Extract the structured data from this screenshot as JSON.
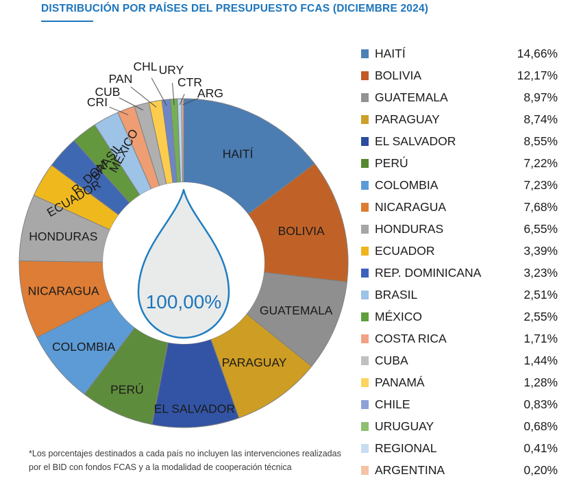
{
  "page": {
    "title": "DISTRIBUCIÓN POR PAÍSES DEL PRESUPUESTO FCAS (DICIEMBRE 2024)"
  },
  "chart_data": {
    "type": "pie",
    "subtype": "donut",
    "title": "DISTRIBUCIÓN POR PAÍSES DEL PRESUPUESTO FCAS (DICIEMBRE 2024)",
    "center_label": "100,00%",
    "legend_position": "right",
    "start_angle_deg": 0,
    "direction": "clockwise",
    "series": [
      {
        "name": "HAITÍ",
        "pie_label": "HAITÍ",
        "value": 14.66,
        "display": "14,66%",
        "slice_color": "#4B7DB3",
        "legend_color": "#4E80B4"
      },
      {
        "name": "BOLIVIA",
        "pie_label": "BOLIVIA",
        "value": 12.17,
        "display": "12,17%",
        "slice_color": "#C06227",
        "legend_color": "#C15A27"
      },
      {
        "name": "GUATEMALA",
        "pie_label": "GUATEMALA",
        "value": 8.97,
        "display": "8,97%",
        "slice_color": "#8F8F8F",
        "legend_color": "#929292"
      },
      {
        "name": "PARAGUAY",
        "pie_label": "PARAGUAY",
        "value": 8.74,
        "display": "8,74%",
        "slice_color": "#CE9D23",
        "legend_color": "#CCA02A"
      },
      {
        "name": "EL SALVADOR",
        "pie_label": "EL SALVADOR",
        "value": 8.55,
        "display": "8,55%",
        "slice_color": "#3354A4",
        "legend_color": "#2C4C9E"
      },
      {
        "name": "PERÚ",
        "pie_label": "PERÚ",
        "value": 7.22,
        "display": "7,22%",
        "slice_color": "#5E8C3D",
        "legend_color": "#55882F"
      },
      {
        "name": "COLOMBIA",
        "pie_label": "COLOMBIA",
        "value": 7.23,
        "display": "7,23%",
        "slice_color": "#5C9BD6",
        "legend_color": "#5B9BD5"
      },
      {
        "name": "NICARAGUA",
        "pie_label": "NICARAGUA",
        "value": 7.68,
        "display": "7,68%",
        "slice_color": "#DE7D35",
        "legend_color": "#DE7D31"
      },
      {
        "name": "HONDURAS",
        "pie_label": "HONDURAS",
        "value": 6.55,
        "display": "6,55%",
        "slice_color": "#A8A8A8",
        "legend_color": "#A6A6A6"
      },
      {
        "name": "ECUADOR",
        "pie_label": "ECUADOR",
        "value": 3.39,
        "display": "3,39%",
        "slice_color": "#EFB91E",
        "legend_color": "#F0B41D"
      },
      {
        "name": "REP. DOMINICANA",
        "pie_label": "R. DOM",
        "value": 3.23,
        "display": "3,23%",
        "slice_color": "#3F68B3",
        "legend_color": "#3C62BB"
      },
      {
        "name": "BRASIL",
        "pie_label": "BRASIL",
        "value": 2.51,
        "display": "2,51%",
        "slice_color": "#63983F",
        "legend_color": "#9DC3E6"
      },
      {
        "name": "MÉXICO",
        "pie_label": "MEXICO",
        "value": 2.55,
        "display": "2,55%",
        "slice_color": "#9DC3E6",
        "legend_color": "#5FA03C"
      },
      {
        "name": "COSTA RICA",
        "pie_label": "CRI",
        "value": 1.71,
        "display": "1,71%",
        "slice_color": "#EF9D73",
        "legend_color": "#F1A284"
      },
      {
        "name": "CUBA",
        "pie_label": "CUB",
        "value": 1.44,
        "display": "1,44%",
        "slice_color": "#B0B0B0",
        "legend_color": "#C0C0C0"
      },
      {
        "name": "PANAMÁ",
        "pie_label": "PAN",
        "value": 1.28,
        "display": "1,28%",
        "slice_color": "#FCCC4E",
        "legend_color": "#FCD45F"
      },
      {
        "name": "CHILE",
        "pie_label": "CHL",
        "value": 0.83,
        "display": "0,83%",
        "slice_color": "#6D86C6",
        "legend_color": "#8FA2D8"
      },
      {
        "name": "URUGUAY",
        "pie_label": "URY",
        "value": 0.68,
        "display": "0,68%",
        "slice_color": "#74AF55",
        "legend_color": "#8FC06F"
      },
      {
        "name": "REGIONAL",
        "pie_label": "CTR",
        "value": 0.41,
        "display": "0,41%",
        "slice_color": "#BCD6EE",
        "legend_color": "#C6DDF1"
      },
      {
        "name": "ARGENTINA",
        "pie_label": "ARG",
        "value": 0.2,
        "display": "0,20%",
        "slice_color": "#F0B195",
        "legend_color": "#F5C2A5"
      }
    ]
  },
  "colors": {
    "accent_blue": "#1C75BC",
    "drop_fill": "#E9EBEA",
    "drop_stroke": "#1F7DC0",
    "slice_border": "#808080",
    "text": "#1a1a1a"
  },
  "footnote": {
    "line1": "*Los porcentajes destinados a cada país no incluyen las intervenciones realizadas",
    "line2": "por el BID con fondos FCAS y a la modalidad de cooperación técnica"
  }
}
